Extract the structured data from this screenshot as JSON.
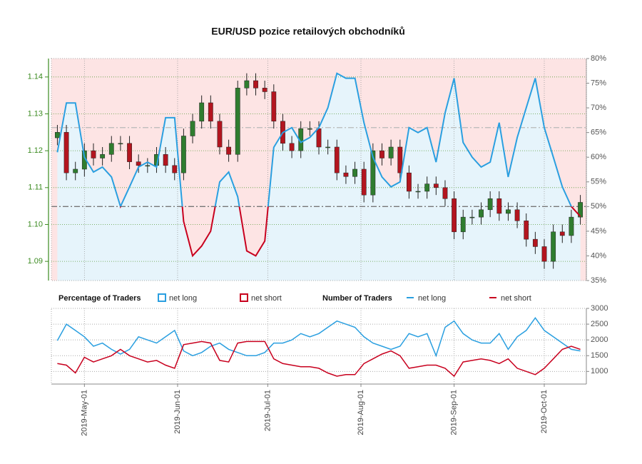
{
  "chart_data": [
    {
      "type": "candlestick",
      "title": "EUR/USD pozice retailových obchodníků",
      "x": [
        "2019-04-22",
        "2019-04-25",
        "2019-04-28",
        "2019-05-01",
        "2019-05-04",
        "2019-05-07",
        "2019-05-10",
        "2019-05-13",
        "2019-05-16",
        "2019-05-19",
        "2019-05-22",
        "2019-05-25",
        "2019-05-28",
        "2019-05-31",
        "2019-06-03",
        "2019-06-06",
        "2019-06-09",
        "2019-06-12",
        "2019-06-15",
        "2019-06-18",
        "2019-06-21",
        "2019-06-24",
        "2019-06-27",
        "2019-06-30",
        "2019-07-03",
        "2019-07-06",
        "2019-07-09",
        "2019-07-12",
        "2019-07-15",
        "2019-07-18",
        "2019-07-21",
        "2019-07-24",
        "2019-07-27",
        "2019-07-30",
        "2019-08-02",
        "2019-08-05",
        "2019-08-08",
        "2019-08-11",
        "2019-08-14",
        "2019-08-17",
        "2019-08-20",
        "2019-08-23",
        "2019-08-26",
        "2019-08-29",
        "2019-09-01",
        "2019-09-04",
        "2019-09-07",
        "2019-09-10",
        "2019-09-13",
        "2019-09-16",
        "2019-09-19",
        "2019-09-22",
        "2019-09-25",
        "2019-09-28",
        "2019-10-01",
        "2019-10-04",
        "2019-10-07",
        "2019-10-10",
        "2019-10-13"
      ],
      "open": [
        1.1235,
        1.125,
        1.114,
        1.115,
        1.12,
        1.118,
        1.119,
        1.122,
        1.122,
        1.117,
        1.116,
        1.116,
        1.119,
        1.116,
        1.114,
        1.124,
        1.128,
        1.133,
        1.128,
        1.121,
        1.119,
        1.137,
        1.139,
        1.137,
        1.136,
        1.128,
        1.122,
        1.12,
        1.126,
        1.126,
        1.121,
        1.121,
        1.114,
        1.113,
        1.115,
        1.108,
        1.12,
        1.118,
        1.121,
        1.114,
        1.109,
        1.109,
        1.111,
        1.11,
        1.107,
        1.098,
        1.102,
        1.102,
        1.104,
        1.107,
        1.103,
        1.104,
        1.101,
        1.096,
        1.094,
        1.09,
        1.098,
        1.097,
        1.102
      ],
      "high": [
        1.127,
        1.127,
        1.117,
        1.122,
        1.122,
        1.121,
        1.124,
        1.124,
        1.124,
        1.119,
        1.118,
        1.121,
        1.121,
        1.118,
        1.126,
        1.13,
        1.135,
        1.135,
        1.13,
        1.123,
        1.139,
        1.141,
        1.141,
        1.139,
        1.138,
        1.13,
        1.124,
        1.128,
        1.128,
        1.128,
        1.123,
        1.123,
        1.116,
        1.117,
        1.117,
        1.122,
        1.122,
        1.123,
        1.123,
        1.116,
        1.111,
        1.113,
        1.113,
        1.112,
        1.109,
        1.104,
        1.104,
        1.106,
        1.109,
        1.109,
        1.106,
        1.106,
        1.103,
        1.098,
        1.096,
        1.1,
        1.1,
        1.104,
        1.108
      ],
      "low": [
        1.1215,
        1.112,
        1.112,
        1.113,
        1.116,
        1.116,
        1.117,
        1.12,
        1.115,
        1.114,
        1.114,
        1.114,
        1.114,
        1.112,
        1.112,
        1.122,
        1.126,
        1.126,
        1.119,
        1.117,
        1.117,
        1.135,
        1.135,
        1.134,
        1.126,
        1.12,
        1.118,
        1.118,
        1.124,
        1.119,
        1.119,
        1.112,
        1.111,
        1.111,
        1.106,
        1.106,
        1.116,
        1.116,
        1.112,
        1.107,
        1.107,
        1.107,
        1.108,
        1.105,
        1.096,
        1.096,
        1.1,
        1.1,
        1.102,
        1.101,
        1.101,
        1.099,
        1.094,
        1.092,
        1.088,
        1.088,
        1.095,
        1.095,
        1.1
      ],
      "close": [
        1.125,
        1.114,
        1.115,
        1.12,
        1.118,
        1.119,
        1.122,
        1.122,
        1.117,
        1.116,
        1.116,
        1.119,
        1.116,
        1.114,
        1.124,
        1.128,
        1.133,
        1.128,
        1.121,
        1.119,
        1.137,
        1.139,
        1.137,
        1.136,
        1.128,
        1.122,
        1.12,
        1.126,
        1.126,
        1.121,
        1.121,
        1.114,
        1.113,
        1.115,
        1.108,
        1.12,
        1.118,
        1.121,
        1.114,
        1.109,
        1.109,
        1.111,
        1.11,
        1.107,
        1.098,
        1.102,
        1.102,
        1.104,
        1.107,
        1.103,
        1.104,
        1.101,
        1.096,
        1.094,
        1.09,
        1.098,
        1.097,
        1.102,
        1.106
      ],
      "up_color": "#2f7d2f",
      "down_color": "#b3151f",
      "axis_color": "#3a8a1f",
      "pct_long": {
        "axis": "y2",
        "values": [
          61,
          71,
          71,
          60,
          57,
          58,
          56,
          50,
          54,
          58,
          59,
          58,
          68,
          68,
          47,
          40,
          42,
          45,
          55,
          57,
          52,
          41,
          40,
          43,
          62,
          65,
          66,
          63,
          64,
          66,
          70,
          77,
          76,
          76,
          67,
          60,
          56,
          54,
          55,
          66,
          65,
          66,
          59,
          69,
          76,
          63,
          60,
          58,
          59,
          67,
          56,
          64,
          70,
          76,
          66,
          60,
          54,
          50,
          48
        ]
      },
      "legend_title": "Percentage of Traders",
      "legend": [
        {
          "name": "net long",
          "color": "#2a9fe0",
          "fill": "#e6f4fb"
        },
        {
          "name": "net short",
          "color": "#c8001e",
          "fill": "#fde4e4"
        }
      ],
      "hlines": [
        {
          "value": 50,
          "color": "#777777"
        },
        {
          "value": 66,
          "color": "#b8b8b8"
        }
      ],
      "xlim": [
        "2019-04-20",
        "2019-10-15"
      ],
      "ylim": [
        1.0848,
        1.145
      ],
      "yticks": [
        1.09,
        {
          "value": 1.1,
          "label": "1.10"
        },
        1.11,
        1.12,
        1.13,
        1.14
      ],
      "y2lim": [
        35,
        80
      ],
      "y2ticks": [
        {
          "value": 35,
          "label": "35%"
        },
        {
          "value": 40,
          "label": "40%"
        },
        {
          "value": 45,
          "label": "45%"
        },
        {
          "value": 50,
          "label": "50%"
        },
        {
          "value": 55,
          "label": "55%"
        },
        {
          "value": 60,
          "label": "60%"
        },
        {
          "value": 65,
          "label": "65%"
        },
        {
          "value": 70,
          "label": "70%"
        },
        {
          "value": 75,
          "label": "75%"
        },
        {
          "value": 80,
          "label": "80%"
        }
      ],
      "grid": true
    },
    {
      "type": "line",
      "legend_title": "Number of Traders",
      "x": [
        "2019-04-22",
        "2019-04-25",
        "2019-04-28",
        "2019-05-01",
        "2019-05-04",
        "2019-05-07",
        "2019-05-10",
        "2019-05-13",
        "2019-05-16",
        "2019-05-19",
        "2019-05-22",
        "2019-05-25",
        "2019-05-28",
        "2019-05-31",
        "2019-06-03",
        "2019-06-06",
        "2019-06-09",
        "2019-06-12",
        "2019-06-15",
        "2019-06-18",
        "2019-06-21",
        "2019-06-24",
        "2019-06-27",
        "2019-06-30",
        "2019-07-03",
        "2019-07-06",
        "2019-07-09",
        "2019-07-12",
        "2019-07-15",
        "2019-07-18",
        "2019-07-21",
        "2019-07-24",
        "2019-07-27",
        "2019-07-30",
        "2019-08-02",
        "2019-08-05",
        "2019-08-08",
        "2019-08-11",
        "2019-08-14",
        "2019-08-17",
        "2019-08-20",
        "2019-08-23",
        "2019-08-26",
        "2019-08-29",
        "2019-09-01",
        "2019-09-04",
        "2019-09-07",
        "2019-09-10",
        "2019-09-13",
        "2019-09-16",
        "2019-09-19",
        "2019-09-22",
        "2019-09-25",
        "2019-09-28",
        "2019-10-01",
        "2019-10-04",
        "2019-10-07",
        "2019-10-10",
        "2019-10-13"
      ],
      "series": [
        {
          "name": "net long",
          "color": "#2a9fe0",
          "values": [
            1980,
            2500,
            2300,
            2100,
            1800,
            1900,
            1700,
            1550,
            1700,
            2100,
            2000,
            1900,
            2100,
            2300,
            1650,
            1500,
            1600,
            1800,
            1900,
            1700,
            1600,
            1500,
            1500,
            1600,
            1900,
            1900,
            2000,
            2200,
            2100,
            2200,
            2400,
            2600,
            2500,
            2400,
            2100,
            1900,
            1800,
            1700,
            1800,
            2200,
            2100,
            2200,
            1500,
            2400,
            2600,
            2200,
            2000,
            1900,
            1900,
            2200,
            1700,
            2100,
            2300,
            2700,
            2300,
            2100,
            1900,
            1700,
            1650
          ]
        },
        {
          "name": "net short",
          "color": "#c8001e",
          "values": [
            1250,
            1200,
            950,
            1450,
            1300,
            1400,
            1500,
            1700,
            1500,
            1400,
            1300,
            1350,
            1200,
            1100,
            1850,
            1900,
            1950,
            1900,
            1350,
            1300,
            1900,
            1950,
            1950,
            1950,
            1400,
            1250,
            1200,
            1150,
            1150,
            1100,
            950,
            850,
            900,
            900,
            1250,
            1400,
            1550,
            1650,
            1500,
            1100,
            1150,
            1200,
            1200,
            1100,
            850,
            1300,
            1350,
            1400,
            1350,
            1250,
            1400,
            1100,
            1000,
            900,
            1100,
            1400,
            1700,
            1800,
            1700
          ]
        }
      ],
      "xlim": [
        "2019-04-20",
        "2019-10-15"
      ],
      "ylim": [
        600,
        3000
      ],
      "yticks": [
        1000,
        1500,
        2000,
        2500,
        3000
      ],
      "xticks": [
        {
          "value": "2019-05-01",
          "label": "2019-May-01"
        },
        {
          "value": "2019-06-01",
          "label": "2019-Jun-01"
        },
        {
          "value": "2019-07-01",
          "label": "2019-Jul-01"
        },
        {
          "value": "2019-08-01",
          "label": "2019-Aug-01"
        },
        {
          "value": "2019-09-01",
          "label": "2019-Sep-01"
        },
        {
          "value": "2019-10-01",
          "label": "2019-Oct-01"
        }
      ],
      "grid": true
    }
  ]
}
